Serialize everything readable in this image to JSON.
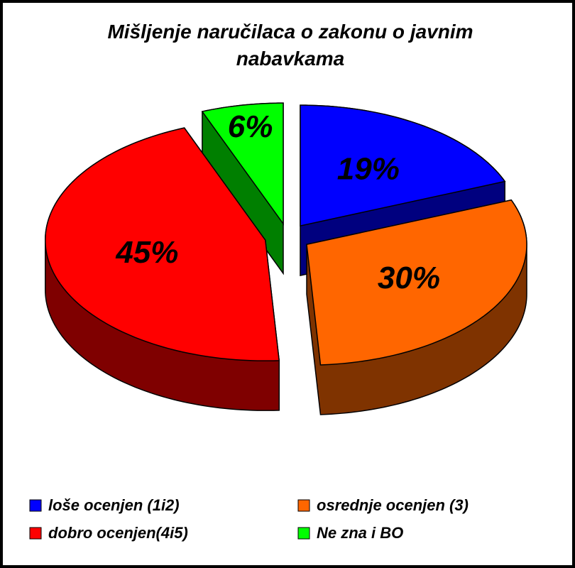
{
  "chart_data": {
    "type": "pie",
    "title": "Mišljenje naručilaca o zakonu o javnim nabavkama",
    "categories": [
      "loše ocenjen (1i2)",
      "osrednje ocenjen (3)",
      "dobro ocenjen(4i5)",
      "Ne zna i BO"
    ],
    "values": [
      19,
      30,
      45,
      6
    ],
    "value_labels": [
      "19%",
      "30%",
      "45%",
      "6%"
    ],
    "colors": [
      "#0000ff",
      "#ff6600",
      "#ff0000",
      "#00ff00"
    ]
  }
}
